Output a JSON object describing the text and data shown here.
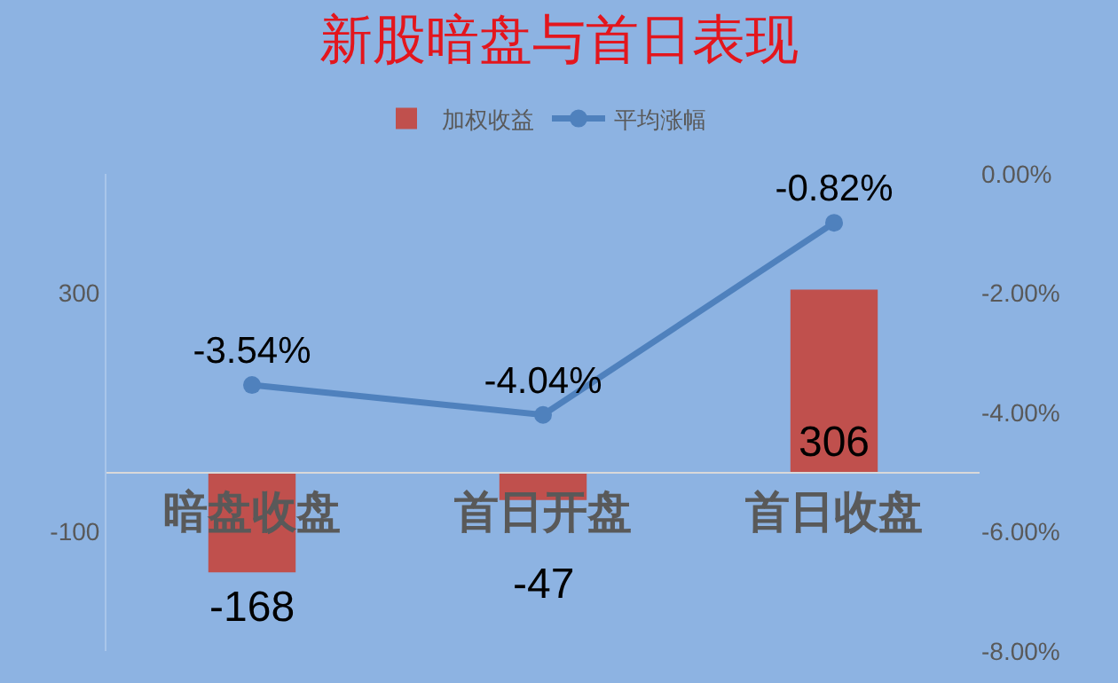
{
  "chart_data": {
    "type": "bar",
    "title": "新股暗盘与首日表现",
    "categories": [
      "暗盘收盘",
      "首日开盘",
      "首日收盘"
    ],
    "series": [
      {
        "name": "加权收益",
        "color": "#c0504d",
        "values": [
          -168,
          -47,
          306
        ],
        "value_labels": [
          "-168",
          "-47",
          "306"
        ]
      },
      {
        "name": "平均涨幅",
        "type": "line",
        "axis": "y2",
        "color": "#4f81bd",
        "marker": "circle",
        "values": [
          -3.54,
          -4.04,
          -0.82
        ],
        "value_labels": [
          "-3.54%",
          "-4.04%",
          "-0.82%"
        ]
      }
    ],
    "ylim": [
      -300,
      500
    ],
    "yticks": [
      300,
      -100
    ],
    "y2lim": [
      -8,
      0
    ],
    "y2ticks": [
      {
        "value": 0,
        "label": "0.00%"
      },
      {
        "value": -2,
        "label": "-2.00%"
      },
      {
        "value": -4,
        "label": "-4.00%"
      },
      {
        "value": -6,
        "label": "-6.00%"
      },
      {
        "value": -8,
        "label": "-8.00%"
      }
    ],
    "grid": false,
    "legend": "top"
  }
}
